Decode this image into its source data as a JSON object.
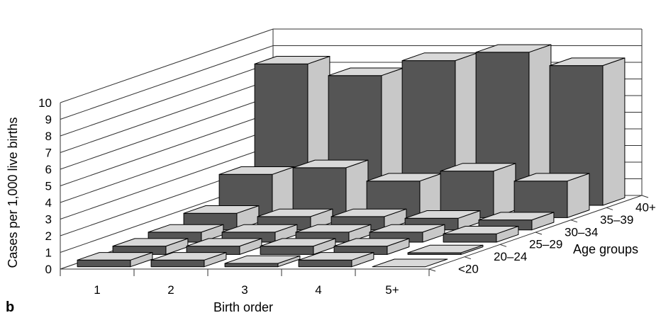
{
  "panel_label": "b",
  "colors": {
    "bar_front": "#555555",
    "bar_top": "#d9d9d9",
    "bar_side": "#c8c8c8",
    "grid": "#333333",
    "background": "#ffffff"
  },
  "chart_data": {
    "type": "bar",
    "subtype": "3d-bar",
    "xlabel": "Birth order",
    "ylabel": "Cases per 1,000 live births",
    "zlabel": "Age groups",
    "x_categories": [
      "1",
      "2",
      "3",
      "4",
      "5+"
    ],
    "depth_categories": [
      "<20",
      "20–24",
      "25–29",
      "30–34",
      "35–39",
      "40+"
    ],
    "y_ticks": [
      "0",
      "1",
      "2",
      "3",
      "4",
      "5",
      "6",
      "7",
      "8",
      "9",
      "10"
    ],
    "ylim": [
      0,
      10
    ],
    "grid": true,
    "series": [
      {
        "name": "<20",
        "values": [
          0.4,
          0.4,
          0.2,
          0.4,
          0.0
        ]
      },
      {
        "name": "20–24",
        "values": [
          0.5,
          0.5,
          0.5,
          0.5,
          0.1
        ]
      },
      {
        "name": "25–29",
        "values": [
          0.6,
          0.6,
          0.6,
          0.6,
          0.5
        ]
      },
      {
        "name": "30–34",
        "values": [
          1.0,
          0.8,
          0.8,
          0.7,
          0.6
        ]
      },
      {
        "name": "35–39",
        "values": [
          2.6,
          3.0,
          2.2,
          2.8,
          2.2
        ]
      },
      {
        "name": "40+",
        "values": [
          8.5,
          7.8,
          8.7,
          9.2,
          8.4
        ]
      }
    ]
  }
}
